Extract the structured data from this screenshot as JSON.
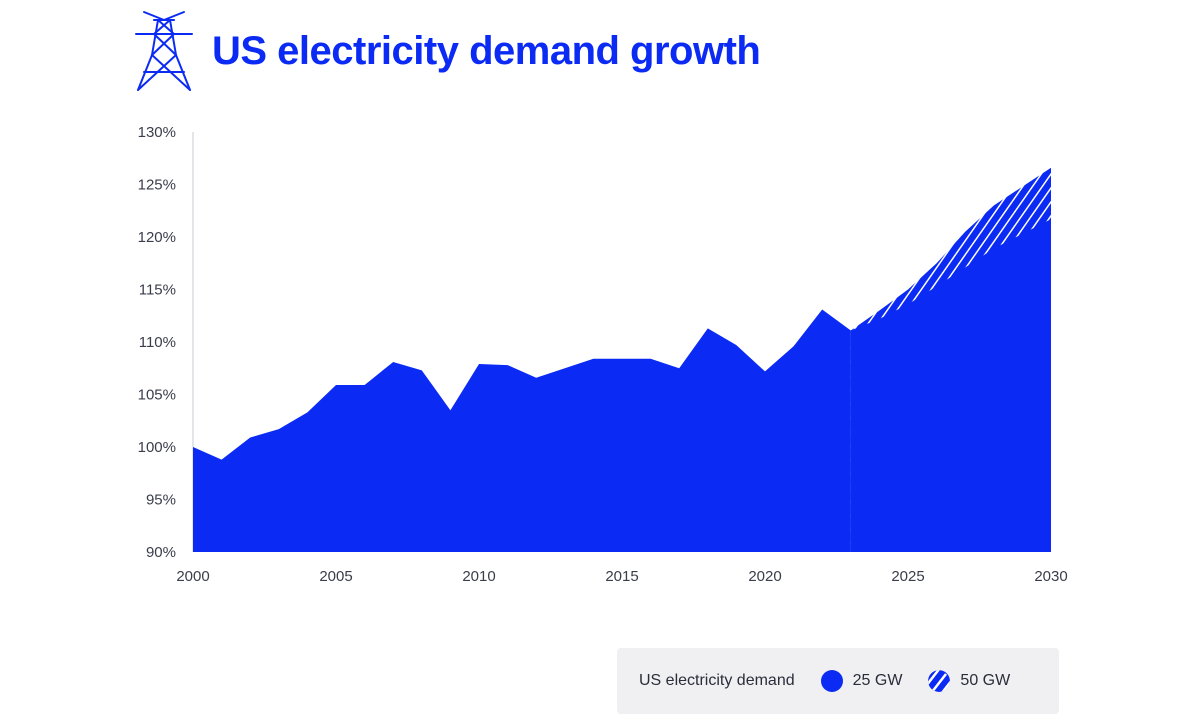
{
  "header": {
    "title": "US electricity demand growth",
    "icon": "power-tower-icon"
  },
  "colors": {
    "primary": "#0b2bf5",
    "hatch_line": "#ffffff"
  },
  "chart_data": {
    "type": "area",
    "title": "US electricity demand growth",
    "xlabel": "",
    "ylabel": "",
    "xlim": [
      2000,
      2030
    ],
    "ylim": [
      90,
      130
    ],
    "x_ticks": [
      "2000",
      "2005",
      "2010",
      "2015",
      "2020",
      "2025",
      "2030"
    ],
    "y_ticks": [
      "90%",
      "95%",
      "100%",
      "105%",
      "110%",
      "115%",
      "120%",
      "125%",
      "130%"
    ],
    "grid": false,
    "legend_position": "bottom-right",
    "historical": {
      "x": [
        2000,
        2001,
        2002,
        2003,
        2004,
        2005,
        2006,
        2007,
        2008,
        2009,
        2010,
        2011,
        2012,
        2013,
        2014,
        2015,
        2016,
        2017,
        2018,
        2019,
        2020,
        2021,
        2022,
        2023
      ],
      "y": [
        100,
        98.8,
        100.9,
        101.7,
        103.3,
        105.9,
        105.9,
        108.1,
        107.3,
        103.5,
        107.9,
        107.8,
        106.6,
        107.5,
        108.4,
        108.4,
        108.4,
        107.5,
        111.3,
        109.7,
        107.2,
        109.6,
        113.1,
        111.1
      ]
    },
    "projection_25gw": {
      "x": [
        2023,
        2024,
        2025,
        2026,
        2027,
        2028,
        2029,
        2030
      ],
      "y": [
        111.1,
        112.2,
        113.6,
        115.3,
        117.1,
        118.9,
        120.3,
        121.7
      ]
    },
    "projection_50gw": {
      "x": [
        2023,
        2024,
        2025,
        2026,
        2027,
        2028,
        2029,
        2030
      ],
      "y": [
        111.1,
        113.0,
        115.0,
        117.5,
        120.5,
        123.0,
        124.8,
        126.6
      ]
    }
  },
  "legend": {
    "title": "US electricity demand",
    "items": [
      {
        "label": "25 GW",
        "style": "solid"
      },
      {
        "label": "50 GW",
        "style": "hatched"
      }
    ]
  }
}
